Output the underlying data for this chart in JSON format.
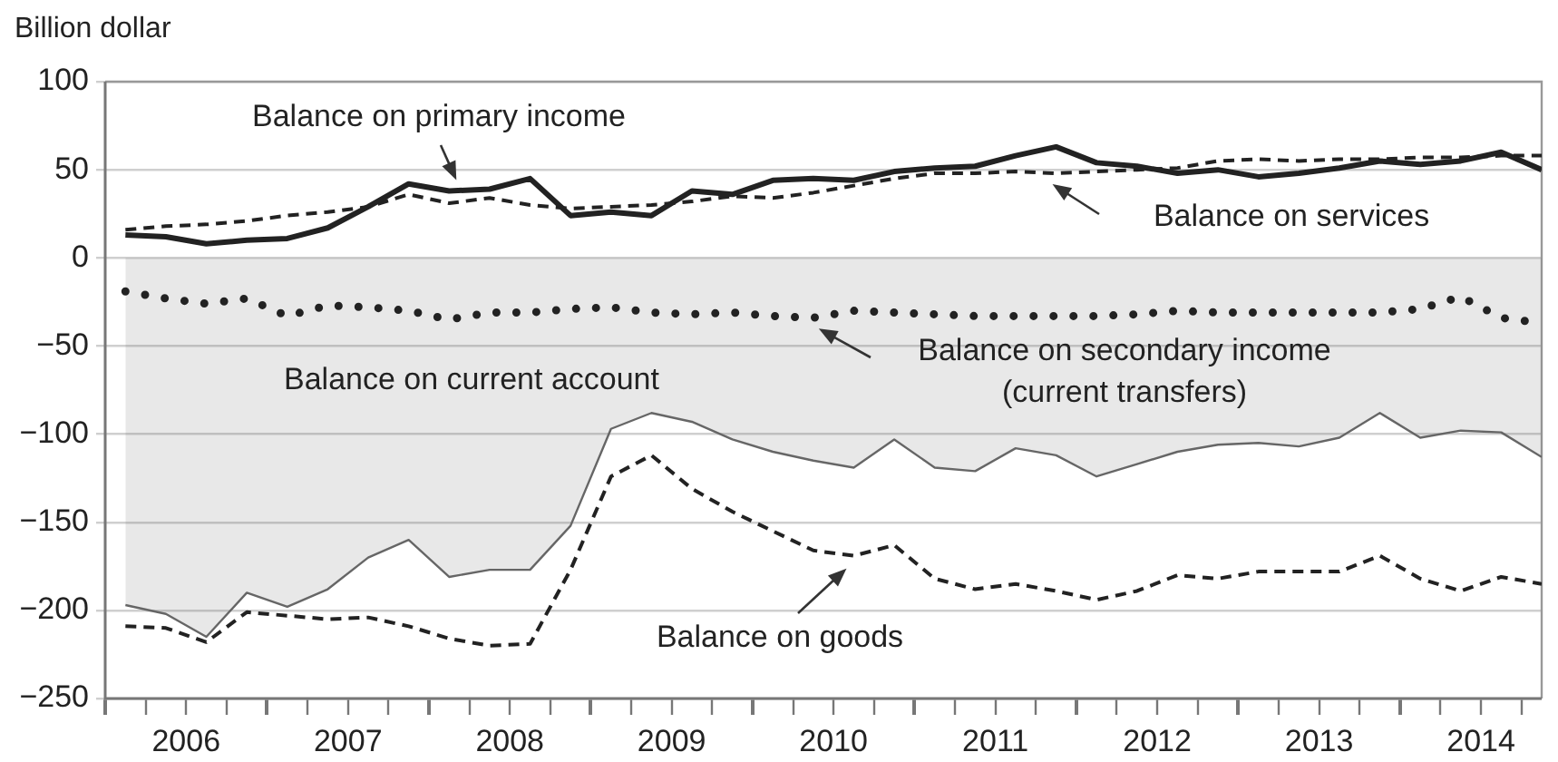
{
  "chart_data": {
    "type": "line",
    "ylabel": "Billion dollar",
    "x": [
      2006.125,
      2006.375,
      2006.625,
      2006.875,
      2007.125,
      2007.375,
      2007.625,
      2007.875,
      2008.125,
      2008.375,
      2008.625,
      2008.875,
      2009.125,
      2009.375,
      2009.625,
      2009.875,
      2010.125,
      2010.375,
      2010.625,
      2010.875,
      2011.125,
      2011.375,
      2011.625,
      2011.875,
      2012.125,
      2012.375,
      2012.625,
      2012.875,
      2013.125,
      2013.375,
      2013.625,
      2013.875,
      2014.125,
      2014.375,
      2014.625,
      2014.875
    ],
    "series": [
      {
        "name": "Balance on primary income",
        "color": "#222222",
        "line_style": "solid",
        "values": [
          13,
          12,
          8,
          10,
          11,
          17,
          29,
          42,
          38,
          39,
          45,
          24,
          26,
          24,
          38,
          36,
          44,
          45,
          44,
          49,
          51,
          52,
          58,
          63,
          54,
          52,
          48,
          50,
          46,
          48,
          51,
          55,
          53,
          55,
          60,
          50
        ]
      },
      {
        "name": "Balance on services",
        "color": "#222222",
        "line_style": "dashed",
        "values": [
          16,
          18,
          19,
          21,
          24,
          26,
          29,
          36,
          31,
          34,
          30,
          28,
          29,
          30,
          32,
          35,
          34,
          37,
          41,
          45,
          48,
          48,
          49,
          48,
          49,
          50,
          51,
          55,
          56,
          55,
          56,
          56,
          57,
          57,
          58,
          58
        ]
      },
      {
        "name": "Balance on secondary income (current transfers)",
        "color": "#222222",
        "line_style": "dotted",
        "values": [
          -19,
          -23,
          -26,
          -23,
          -33,
          -27,
          -28,
          -30,
          -35,
          -31,
          -31,
          -29,
          -28,
          -31,
          -32,
          -31,
          -33,
          -34,
          -30,
          -31,
          -32,
          -33,
          -33,
          -33,
          -33,
          -32,
          -30,
          -31,
          -31,
          -31,
          -31,
          -31,
          -29,
          -22,
          -34,
          -37
        ]
      },
      {
        "name": "Balance on current account",
        "type": "area",
        "color": "#666666",
        "line_style": "solid",
        "values": [
          -197,
          -202,
          -215,
          -190,
          -198,
          -188,
          -170,
          -160,
          -181,
          -177,
          -177,
          -152,
          -97,
          -88,
          -93,
          -103,
          -110,
          -115,
          -119,
          -103,
          -119,
          -121,
          -108,
          -112,
          -124,
          -117,
          -110,
          -106,
          -105,
          -107,
          -102,
          -88,
          -102,
          -98,
          -99,
          -113
        ]
      },
      {
        "name": "Balance on goods",
        "color": "#222222",
        "line_style": "dashed",
        "values": [
          -209,
          -210,
          -218,
          -201,
          -203,
          -205,
          -204,
          -209,
          -216,
          -220,
          -219,
          -177,
          -124,
          -112,
          -131,
          -144,
          -155,
          -166,
          -169,
          -163,
          -182,
          -188,
          -185,
          -189,
          -194,
          -189,
          -180,
          -182,
          -178,
          -178,
          -178,
          -169,
          -182,
          -189,
          -181,
          -185
        ]
      }
    ],
    "xlim": [
      2006,
      2014.875
    ],
    "xticks": [
      {
        "value": 2006,
        "label": null
      },
      {
        "value": 2006.25,
        "label": null
      },
      {
        "value": 2006.5,
        "label": "2006"
      },
      {
        "value": 2006.75,
        "label": null
      },
      {
        "value": 2007,
        "label": null
      },
      {
        "value": 2007.25,
        "label": null
      },
      {
        "value": 2007.5,
        "label": "2007"
      },
      {
        "value": 2007.75,
        "label": null
      },
      {
        "value": 2008,
        "label": null
      },
      {
        "value": 2008.25,
        "label": null
      },
      {
        "value": 2008.5,
        "label": "2008"
      },
      {
        "value": 2008.75,
        "label": null
      },
      {
        "value": 2009,
        "label": null
      },
      {
        "value": 2009.25,
        "label": null
      },
      {
        "value": 2009.5,
        "label": "2009"
      },
      {
        "value": 2009.75,
        "label": null
      },
      {
        "value": 2010,
        "label": null
      },
      {
        "value": 2010.25,
        "label": null
      },
      {
        "value": 2010.5,
        "label": "2010"
      },
      {
        "value": 2010.75,
        "label": null
      },
      {
        "value": 2011,
        "label": null
      },
      {
        "value": 2011.25,
        "label": null
      },
      {
        "value": 2011.5,
        "label": "2011"
      },
      {
        "value": 2011.75,
        "label": null
      },
      {
        "value": 2012,
        "label": null
      },
      {
        "value": 2012.25,
        "label": null
      },
      {
        "value": 2012.5,
        "label": "2012"
      },
      {
        "value": 2012.75,
        "label": null
      },
      {
        "value": 2013,
        "label": null
      },
      {
        "value": 2013.25,
        "label": null
      },
      {
        "value": 2013.5,
        "label": "2013"
      },
      {
        "value": 2013.75,
        "label": null
      },
      {
        "value": 2014,
        "label": null
      },
      {
        "value": 2014.25,
        "label": null
      },
      {
        "value": 2014.5,
        "label": "2014"
      },
      {
        "value": 2014.75,
        "label": null
      }
    ],
    "ylim": [
      -250,
      100
    ],
    "yticks": [
      100,
      50,
      0,
      {
        "value": -50,
        "label": "−50"
      },
      {
        "value": -100,
        "label": "−100"
      },
      {
        "value": -150,
        "label": "−150"
      },
      {
        "value": -200,
        "label": "−200"
      },
      {
        "value": -250,
        "label": "−250"
      }
    ],
    "grid": "y",
    "legend": false,
    "marker": "none"
  }
}
